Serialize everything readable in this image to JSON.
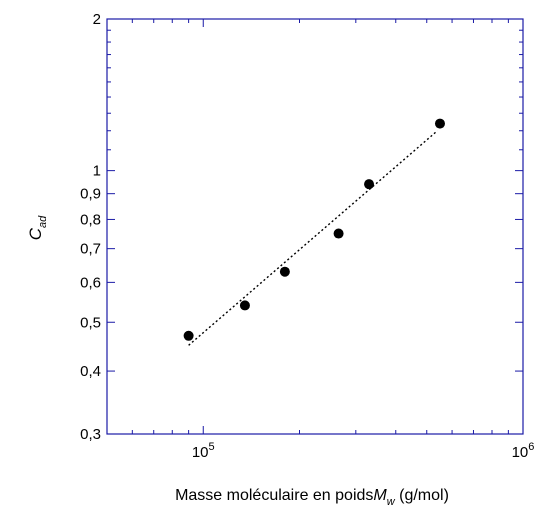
{
  "chart_data": {
    "type": "scatter",
    "x_scale": "log",
    "y_scale": "log",
    "xlim": [
      50000,
      1000000
    ],
    "ylim": [
      0.3,
      2
    ],
    "xlabel": {
      "prefix": "Masse moléculaire en poids",
      "symbol": "M",
      "subscript": "w",
      "suffix": " (g/mol)"
    },
    "ylabel": {
      "symbol": "C",
      "subscript": "ad"
    },
    "y_ticks": [
      {
        "value": 0.3,
        "label": "0,3"
      },
      {
        "value": 0.4,
        "label": "0,4"
      },
      {
        "value": 0.5,
        "label": "0,5"
      },
      {
        "value": 0.6,
        "label": "0,6"
      },
      {
        "value": 0.7,
        "label": "0,7"
      },
      {
        "value": 0.8,
        "label": "0,8"
      },
      {
        "value": 0.9,
        "label": "0,9"
      },
      {
        "value": 1,
        "label": "1"
      },
      {
        "value": 2,
        "label": "2"
      }
    ],
    "x_ticks": [
      {
        "value": 100000,
        "base": "10",
        "exp": "5"
      },
      {
        "value": 1000000,
        "base": "10",
        "exp": "6"
      }
    ],
    "series": [
      {
        "points": [
          {
            "x": 90000,
            "y": 0.47
          },
          {
            "x": 135000,
            "y": 0.54
          },
          {
            "x": 180000,
            "y": 0.63
          },
          {
            "x": 265000,
            "y": 0.75
          },
          {
            "x": 330000,
            "y": 0.94
          },
          {
            "x": 550000,
            "y": 1.24
          }
        ],
        "marker": "filled-circle",
        "color": "#000000"
      }
    ],
    "fit_line": {
      "x": [
        90000,
        540000
      ],
      "y": [
        0.45,
        1.2
      ],
      "style": "dotted",
      "color": "#000000"
    },
    "frame_color": "#1a1aa6",
    "grid": false
  }
}
